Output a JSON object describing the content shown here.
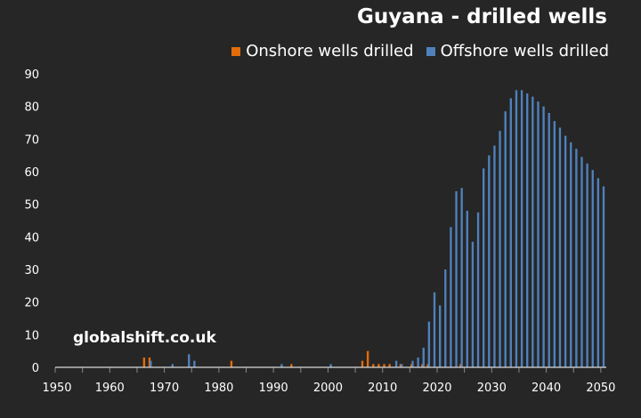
{
  "chart_data": {
    "type": "bar",
    "title": "Guyana - drilled wells",
    "xlabel": "",
    "ylabel": "",
    "ylim": [
      0,
      90
    ],
    "xlim": [
      1950,
      2050
    ],
    "yticks": [
      0,
      10,
      20,
      30,
      40,
      50,
      60,
      70,
      80,
      90
    ],
    "xticks": [
      1950,
      1960,
      1970,
      1980,
      1990,
      2000,
      2010,
      2020,
      2030,
      2040,
      2050
    ],
    "legend_placement": "top-right",
    "grid": false,
    "watermark": "globalshift.co.uk",
    "series": [
      {
        "name": "Onshore wells drilled",
        "color": "#E36C0A",
        "points": [
          [
            1966,
            3
          ],
          [
            1967,
            3
          ],
          [
            1982,
            2
          ],
          [
            1993,
            1
          ],
          [
            2006,
            2
          ],
          [
            2007,
            5
          ],
          [
            2008,
            1
          ],
          [
            2009,
            1
          ],
          [
            2010,
            1
          ],
          [
            2011,
            1
          ],
          [
            2013,
            1
          ],
          [
            2015,
            1
          ],
          [
            2017,
            1
          ],
          [
            2018,
            1
          ],
          [
            2024,
            1
          ]
        ]
      },
      {
        "name": "Offshore wells drilled",
        "color": "#4F81BD",
        "points": [
          [
            1967,
            2
          ],
          [
            1971,
            1
          ],
          [
            1974,
            4
          ],
          [
            1975,
            2
          ],
          [
            1991,
            1
          ],
          [
            2000,
            1
          ],
          [
            2012,
            2
          ],
          [
            2013,
            1
          ],
          [
            2015,
            2
          ],
          [
            2016,
            3
          ],
          [
            2017,
            6
          ],
          [
            2018,
            14
          ],
          [
            2019,
            23
          ],
          [
            2020,
            19
          ],
          [
            2021,
            30
          ],
          [
            2022,
            43
          ],
          [
            2023,
            54
          ],
          [
            2024,
            55
          ],
          [
            2025,
            48
          ],
          [
            2026,
            38.5
          ],
          [
            2027,
            47.5
          ],
          [
            2028,
            61
          ],
          [
            2029,
            65
          ],
          [
            2030,
            68
          ],
          [
            2031,
            72.5
          ],
          [
            2032,
            78.5
          ],
          [
            2033,
            82.5
          ],
          [
            2034,
            85
          ],
          [
            2035,
            85
          ],
          [
            2036,
            84
          ],
          [
            2037,
            83
          ],
          [
            2038,
            81.5
          ],
          [
            2039,
            80
          ],
          [
            2040,
            78
          ],
          [
            2041,
            75.5
          ],
          [
            2042,
            73.5
          ],
          [
            2043,
            71
          ],
          [
            2044,
            69
          ],
          [
            2045,
            67
          ],
          [
            2046,
            64.5
          ],
          [
            2047,
            62.5
          ],
          [
            2048,
            60.5
          ],
          [
            2049,
            58
          ],
          [
            2050,
            55.5
          ]
        ]
      }
    ]
  }
}
